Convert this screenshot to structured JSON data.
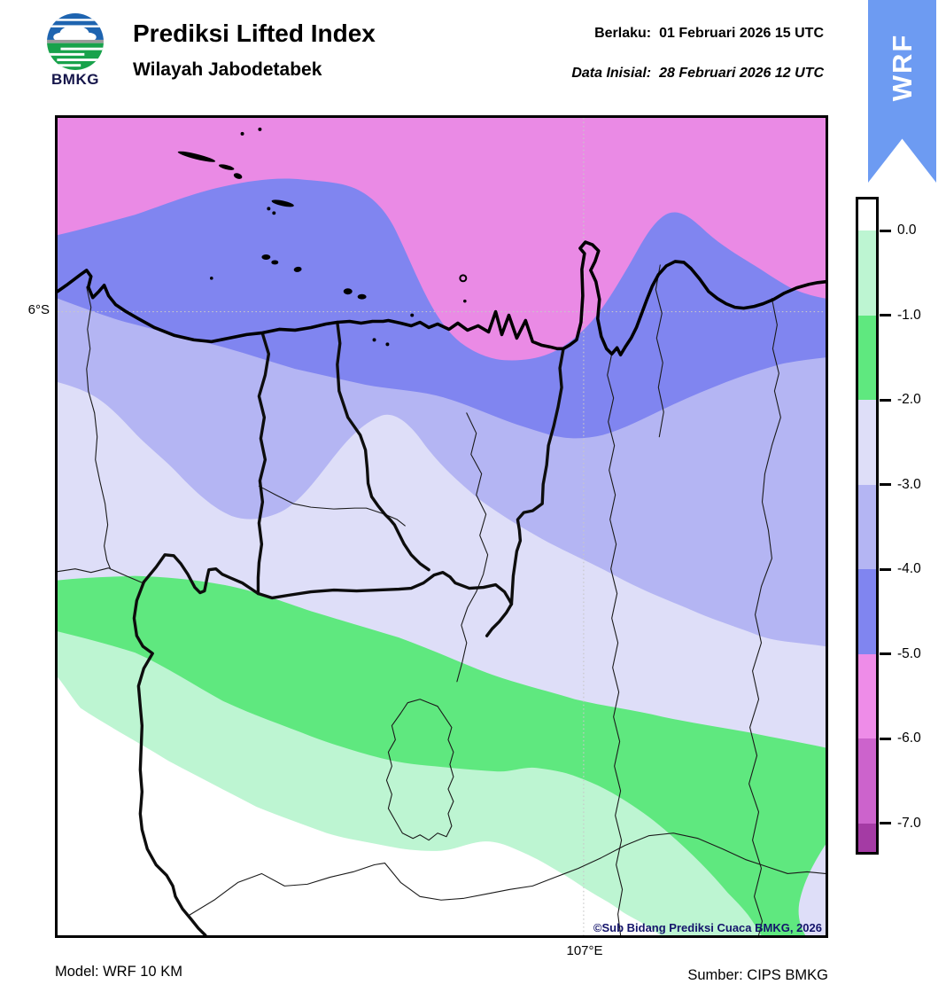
{
  "header": {
    "logo_text": "BMKG",
    "title": "Prediksi Lifted Index",
    "subtitle": "Wilayah Jabodetabek",
    "valid_label": "Berlaku:",
    "valid_value": "01 Februari 2026 15 UTC",
    "initial_label": "Data Inisial:",
    "initial_value": "28 Februari 2026 12 UTC",
    "ribbon_label": "WRF"
  },
  "map": {
    "lat_tick": "6°S",
    "lon_tick": "107°E",
    "copyright": "©Sub Bidang Prediksi Cuaca BMKG, 2026"
  },
  "footer": {
    "model": "Model: WRF 10 KM",
    "source": "Sumber: CIPS BMKG"
  },
  "colorbar": {
    "ticks": [
      "0.0",
      "-1.0",
      "-2.0",
      "-3.0",
      "-4.0",
      "-5.0",
      "-6.0",
      "-7.0"
    ],
    "levels": [
      0,
      -1,
      -2,
      -3,
      -4,
      -5,
      -6,
      -7
    ],
    "segments": [
      {
        "range": "> 0.0",
        "color": "#FFFFFF"
      },
      {
        "range": "0.0 to -1.0",
        "color": "#BDF5D2"
      },
      {
        "range": "-1.0 to -2.0",
        "color": "#5FE87F"
      },
      {
        "range": "-2.0 to -3.0",
        "color": "#DEDEF8"
      },
      {
        "range": "-3.0 to -4.0",
        "color": "#B4B5F3"
      },
      {
        "range": "-4.0 to -5.0",
        "color": "#8085F0"
      },
      {
        "range": "-5.0 to -6.0",
        "color": "#EE8CE8"
      },
      {
        "range": "-6.0 to -7.0",
        "color": "#CC63CC"
      },
      {
        "range": "< -7.0",
        "color": "#A43BA4"
      }
    ]
  },
  "palette": {
    "pink": "#EA8AE5",
    "blue": "#8085F0",
    "periwinkle": "#B4B5F3",
    "lavender": "#DEDEF8",
    "green": "#5FE87F",
    "mint": "#BDF5D2",
    "white_zone": "#FFFFFF",
    "orchid": "#CC63CC",
    "magenta": "#A43BA4",
    "ribbon_blue": "#6D9BF2",
    "logo_blue": "#1E64B0",
    "logo_green": "#18A24B",
    "copyright_navy": "#14146B"
  }
}
